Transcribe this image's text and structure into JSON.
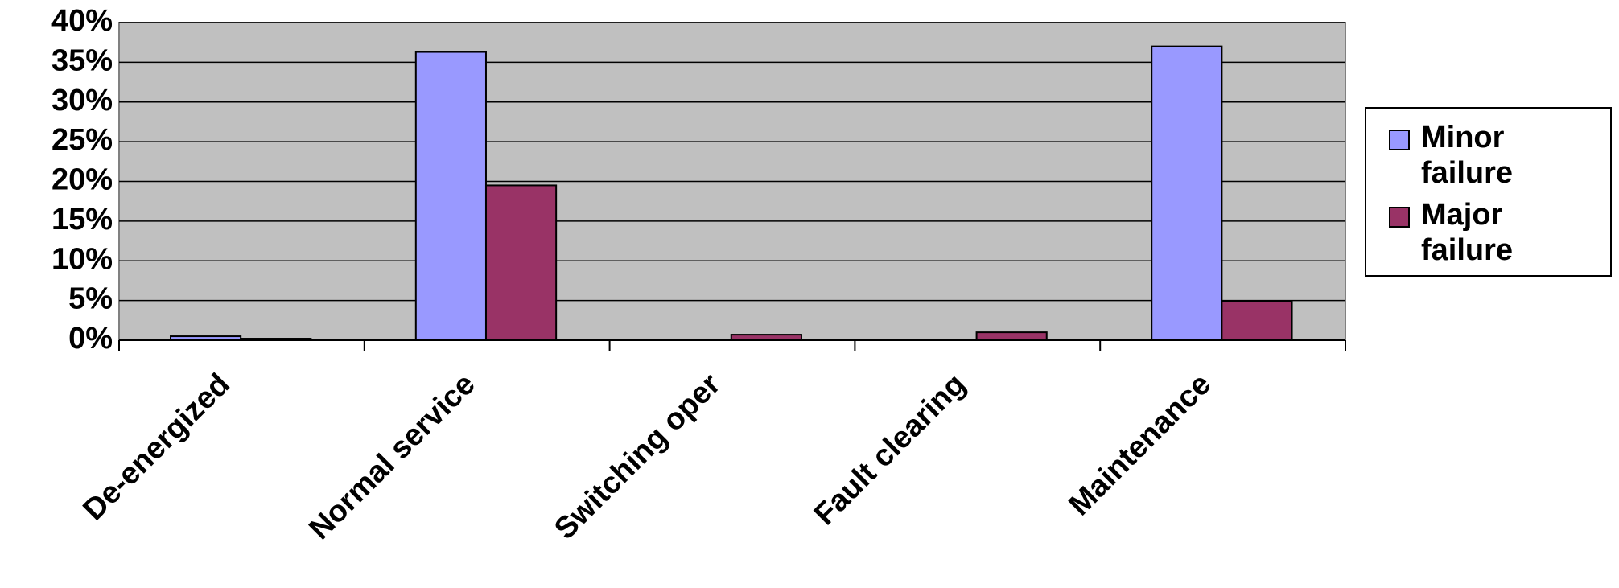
{
  "chart_data": {
    "type": "bar",
    "categories": [
      "De-energized",
      "Normal service",
      "Switching oper",
      "Fault clearing",
      "Maintenance"
    ],
    "series": [
      {
        "name": "Minor failure",
        "color": "#9999ff",
        "values": [
          0.5,
          36.3,
          0,
          0,
          37.0
        ]
      },
      {
        "name": "Major failure",
        "color": "#993366",
        "values": [
          0.2,
          19.5,
          0.7,
          1.0,
          4.9
        ]
      }
    ],
    "ylim": [
      0,
      40
    ],
    "yticks": [
      {
        "value": 0,
        "label": "0%"
      },
      {
        "value": 5,
        "label": "5%"
      },
      {
        "value": 10,
        "label": "10%"
      },
      {
        "value": 15,
        "label": "15%"
      },
      {
        "value": 20,
        "label": "20%"
      },
      {
        "value": 25,
        "label": "25%"
      },
      {
        "value": 30,
        "label": "30%"
      },
      {
        "value": 35,
        "label": "35%"
      },
      {
        "value": 40,
        "label": "40%"
      }
    ],
    "grid": true,
    "legend": "right",
    "plot_background": "#c0c0c0"
  }
}
